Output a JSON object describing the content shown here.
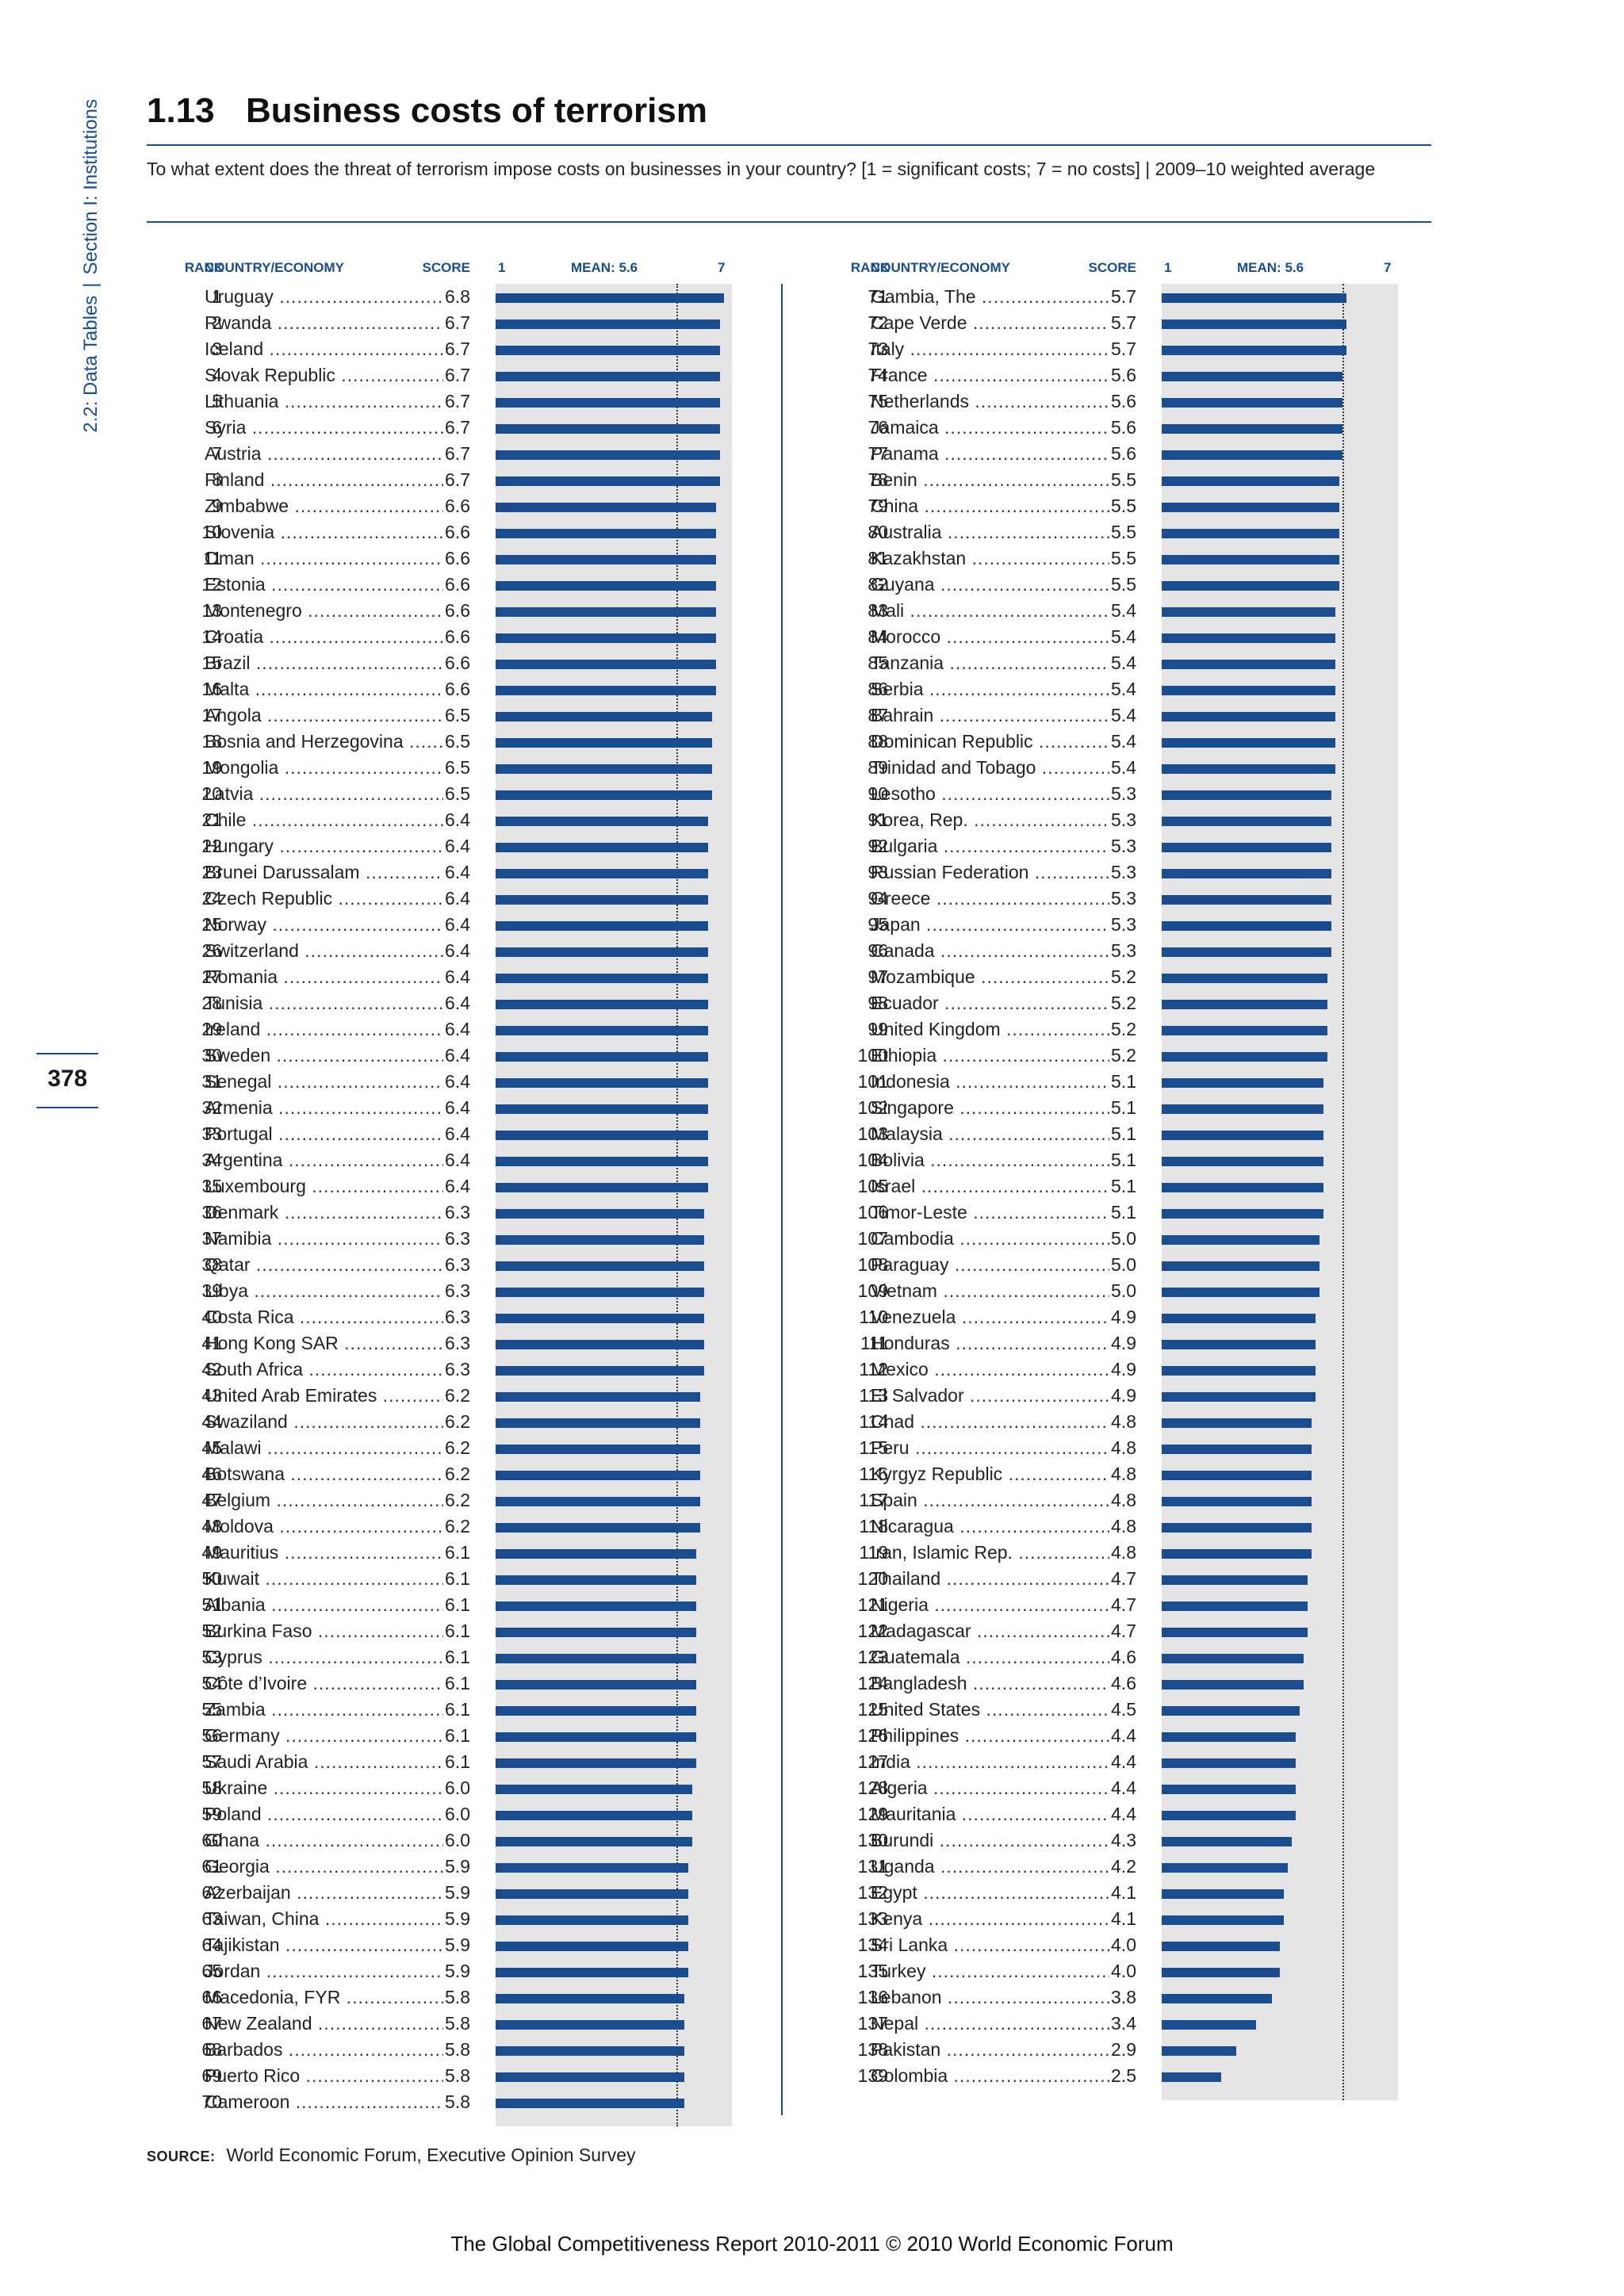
{
  "side": {
    "part1": "2.2: Data Tables",
    "sep": "|",
    "part2": "Section I: Institutions"
  },
  "page_number": "378",
  "title": {
    "number": "1.13",
    "text": "Business costs of terrorism"
  },
  "question": "To what extent does the threat of terrorism impose costs on businesses in your country? [1 = significant costs; 7 = no costs]  |  2009–10 weighted average",
  "headers": {
    "rank": "RANK",
    "country": "COUNTRY/ECONOMY",
    "score": "SCORE",
    "min": "1",
    "mean": "MEAN: 5.6",
    "max": "7"
  },
  "source": {
    "label": "SOURCE:",
    "text": "World Economic Forum, Executive Opinion Survey"
  },
  "footer": "The Global Competitiveness Report 2010-2011 © 2010 World Economic Forum",
  "colors": {
    "accent": "#1a4d8f",
    "bar": "#1a4d8f",
    "track": "#e5e5e5"
  },
  "chart_data": {
    "type": "bar",
    "orientation": "horizontal",
    "title": "Business costs of terrorism",
    "xlim": [
      1,
      7
    ],
    "mean": 5.6,
    "rows": [
      {
        "rank": 1,
        "country": "Uruguay",
        "score": 6.8
      },
      {
        "rank": 2,
        "country": "Rwanda",
        "score": 6.7
      },
      {
        "rank": 3,
        "country": "Iceland",
        "score": 6.7
      },
      {
        "rank": 4,
        "country": "Slovak Republic",
        "score": 6.7
      },
      {
        "rank": 5,
        "country": "Lithuania",
        "score": 6.7
      },
      {
        "rank": 6,
        "country": "Syria",
        "score": 6.7
      },
      {
        "rank": 7,
        "country": "Austria",
        "score": 6.7
      },
      {
        "rank": 8,
        "country": "Finland",
        "score": 6.7
      },
      {
        "rank": 9,
        "country": "Zimbabwe",
        "score": 6.6
      },
      {
        "rank": 10,
        "country": "Slovenia",
        "score": 6.6
      },
      {
        "rank": 11,
        "country": "Oman",
        "score": 6.6
      },
      {
        "rank": 12,
        "country": "Estonia",
        "score": 6.6
      },
      {
        "rank": 13,
        "country": "Montenegro",
        "score": 6.6
      },
      {
        "rank": 14,
        "country": "Croatia",
        "score": 6.6
      },
      {
        "rank": 15,
        "country": "Brazil",
        "score": 6.6
      },
      {
        "rank": 16,
        "country": "Malta",
        "score": 6.6
      },
      {
        "rank": 17,
        "country": "Angola",
        "score": 6.5
      },
      {
        "rank": 18,
        "country": "Bosnia and Herzegovina",
        "score": 6.5
      },
      {
        "rank": 19,
        "country": "Mongolia",
        "score": 6.5
      },
      {
        "rank": 20,
        "country": "Latvia",
        "score": 6.5
      },
      {
        "rank": 21,
        "country": "Chile",
        "score": 6.4
      },
      {
        "rank": 22,
        "country": "Hungary",
        "score": 6.4
      },
      {
        "rank": 23,
        "country": "Brunei Darussalam",
        "score": 6.4
      },
      {
        "rank": 24,
        "country": "Czech Republic",
        "score": 6.4
      },
      {
        "rank": 25,
        "country": "Norway",
        "score": 6.4
      },
      {
        "rank": 26,
        "country": "Switzerland",
        "score": 6.4
      },
      {
        "rank": 27,
        "country": "Romania",
        "score": 6.4
      },
      {
        "rank": 28,
        "country": "Tunisia",
        "score": 6.4
      },
      {
        "rank": 29,
        "country": "Ireland",
        "score": 6.4
      },
      {
        "rank": 30,
        "country": "Sweden",
        "score": 6.4
      },
      {
        "rank": 31,
        "country": "Senegal",
        "score": 6.4
      },
      {
        "rank": 32,
        "country": "Armenia",
        "score": 6.4
      },
      {
        "rank": 33,
        "country": "Portugal",
        "score": 6.4
      },
      {
        "rank": 34,
        "country": "Argentina",
        "score": 6.4
      },
      {
        "rank": 35,
        "country": "Luxembourg",
        "score": 6.4
      },
      {
        "rank": 36,
        "country": "Denmark",
        "score": 6.3
      },
      {
        "rank": 37,
        "country": "Namibia",
        "score": 6.3
      },
      {
        "rank": 38,
        "country": "Qatar",
        "score": 6.3
      },
      {
        "rank": 39,
        "country": "Libya",
        "score": 6.3
      },
      {
        "rank": 40,
        "country": "Costa Rica",
        "score": 6.3
      },
      {
        "rank": 41,
        "country": "Hong Kong SAR",
        "score": 6.3
      },
      {
        "rank": 42,
        "country": "South Africa",
        "score": 6.3
      },
      {
        "rank": 43,
        "country": "United Arab Emirates",
        "score": 6.2
      },
      {
        "rank": 44,
        "country": "Swaziland",
        "score": 6.2
      },
      {
        "rank": 45,
        "country": "Malawi",
        "score": 6.2
      },
      {
        "rank": 46,
        "country": "Botswana",
        "score": 6.2
      },
      {
        "rank": 47,
        "country": "Belgium",
        "score": 6.2
      },
      {
        "rank": 48,
        "country": "Moldova",
        "score": 6.2
      },
      {
        "rank": 49,
        "country": "Mauritius",
        "score": 6.1
      },
      {
        "rank": 50,
        "country": "Kuwait",
        "score": 6.1
      },
      {
        "rank": 51,
        "country": "Albania",
        "score": 6.1
      },
      {
        "rank": 52,
        "country": "Burkina Faso",
        "score": 6.1
      },
      {
        "rank": 53,
        "country": "Cyprus",
        "score": 6.1
      },
      {
        "rank": 54,
        "country": "Côte d’Ivoire",
        "score": 6.1
      },
      {
        "rank": 55,
        "country": "Zambia",
        "score": 6.1
      },
      {
        "rank": 56,
        "country": "Germany",
        "score": 6.1
      },
      {
        "rank": 57,
        "country": "Saudi Arabia",
        "score": 6.1
      },
      {
        "rank": 58,
        "country": "Ukraine",
        "score": 6.0
      },
      {
        "rank": 59,
        "country": "Poland",
        "score": 6.0
      },
      {
        "rank": 60,
        "country": "Ghana",
        "score": 6.0
      },
      {
        "rank": 61,
        "country": "Georgia",
        "score": 5.9
      },
      {
        "rank": 62,
        "country": "Azerbaijan",
        "score": 5.9
      },
      {
        "rank": 63,
        "country": "Taiwan, China",
        "score": 5.9
      },
      {
        "rank": 64,
        "country": "Tajikistan",
        "score": 5.9
      },
      {
        "rank": 65,
        "country": "Jordan",
        "score": 5.9
      },
      {
        "rank": 66,
        "country": "Macedonia, FYR",
        "score": 5.8
      },
      {
        "rank": 67,
        "country": "New Zealand",
        "score": 5.8
      },
      {
        "rank": 68,
        "country": "Barbados",
        "score": 5.8
      },
      {
        "rank": 69,
        "country": "Puerto Rico",
        "score": 5.8
      },
      {
        "rank": 70,
        "country": "Cameroon",
        "score": 5.8
      },
      {
        "rank": 71,
        "country": "Gambia, The",
        "score": 5.7
      },
      {
        "rank": 72,
        "country": "Cape Verde",
        "score": 5.7
      },
      {
        "rank": 73,
        "country": "Italy",
        "score": 5.7
      },
      {
        "rank": 74,
        "country": "France",
        "score": 5.6
      },
      {
        "rank": 75,
        "country": "Netherlands",
        "score": 5.6
      },
      {
        "rank": 76,
        "country": "Jamaica",
        "score": 5.6
      },
      {
        "rank": 77,
        "country": "Panama",
        "score": 5.6
      },
      {
        "rank": 78,
        "country": "Benin",
        "score": 5.5
      },
      {
        "rank": 79,
        "country": "China",
        "score": 5.5
      },
      {
        "rank": 80,
        "country": "Australia",
        "score": 5.5
      },
      {
        "rank": 81,
        "country": "Kazakhstan",
        "score": 5.5
      },
      {
        "rank": 82,
        "country": "Guyana",
        "score": 5.5
      },
      {
        "rank": 83,
        "country": "Mali",
        "score": 5.4
      },
      {
        "rank": 84,
        "country": "Morocco",
        "score": 5.4
      },
      {
        "rank": 85,
        "country": "Tanzania",
        "score": 5.4
      },
      {
        "rank": 86,
        "country": "Serbia",
        "score": 5.4
      },
      {
        "rank": 87,
        "country": "Bahrain",
        "score": 5.4
      },
      {
        "rank": 88,
        "country": "Dominican Republic",
        "score": 5.4
      },
      {
        "rank": 89,
        "country": "Trinidad and Tobago",
        "score": 5.4
      },
      {
        "rank": 90,
        "country": "Lesotho",
        "score": 5.3
      },
      {
        "rank": 91,
        "country": "Korea, Rep.",
        "score": 5.3
      },
      {
        "rank": 92,
        "country": "Bulgaria",
        "score": 5.3
      },
      {
        "rank": 93,
        "country": "Russian Federation",
        "score": 5.3
      },
      {
        "rank": 94,
        "country": "Greece",
        "score": 5.3
      },
      {
        "rank": 95,
        "country": "Japan",
        "score": 5.3
      },
      {
        "rank": 96,
        "country": "Canada",
        "score": 5.3
      },
      {
        "rank": 97,
        "country": "Mozambique",
        "score": 5.2
      },
      {
        "rank": 98,
        "country": "Ecuador",
        "score": 5.2
      },
      {
        "rank": 99,
        "country": "United Kingdom",
        "score": 5.2
      },
      {
        "rank": 100,
        "country": "Ethiopia",
        "score": 5.2
      },
      {
        "rank": 101,
        "country": "Indonesia",
        "score": 5.1
      },
      {
        "rank": 102,
        "country": "Singapore",
        "score": 5.1
      },
      {
        "rank": 103,
        "country": "Malaysia",
        "score": 5.1
      },
      {
        "rank": 104,
        "country": "Bolivia",
        "score": 5.1
      },
      {
        "rank": 105,
        "country": "Israel",
        "score": 5.1
      },
      {
        "rank": 106,
        "country": "Timor-Leste",
        "score": 5.1
      },
      {
        "rank": 107,
        "country": "Cambodia",
        "score": 5.0
      },
      {
        "rank": 108,
        "country": "Paraguay",
        "score": 5.0
      },
      {
        "rank": 109,
        "country": "Vietnam",
        "score": 5.0
      },
      {
        "rank": 110,
        "country": "Venezuela",
        "score": 4.9
      },
      {
        "rank": 111,
        "country": "Honduras",
        "score": 4.9
      },
      {
        "rank": 112,
        "country": "Mexico",
        "score": 4.9
      },
      {
        "rank": 113,
        "country": "El Salvador",
        "score": 4.9
      },
      {
        "rank": 114,
        "country": "Chad",
        "score": 4.8
      },
      {
        "rank": 115,
        "country": "Peru",
        "score": 4.8
      },
      {
        "rank": 116,
        "country": "Kyrgyz Republic",
        "score": 4.8
      },
      {
        "rank": 117,
        "country": "Spain",
        "score": 4.8
      },
      {
        "rank": 118,
        "country": "Nicaragua",
        "score": 4.8
      },
      {
        "rank": 119,
        "country": "Iran, Islamic Rep.",
        "score": 4.8
      },
      {
        "rank": 120,
        "country": "Thailand",
        "score": 4.7
      },
      {
        "rank": 121,
        "country": "Nigeria",
        "score": 4.7
      },
      {
        "rank": 122,
        "country": "Madagascar",
        "score": 4.7
      },
      {
        "rank": 123,
        "country": "Guatemala",
        "score": 4.6
      },
      {
        "rank": 124,
        "country": "Bangladesh",
        "score": 4.6
      },
      {
        "rank": 125,
        "country": "United States",
        "score": 4.5
      },
      {
        "rank": 126,
        "country": "Philippines",
        "score": 4.4
      },
      {
        "rank": 127,
        "country": "India",
        "score": 4.4
      },
      {
        "rank": 128,
        "country": "Algeria",
        "score": 4.4
      },
      {
        "rank": 129,
        "country": "Mauritania",
        "score": 4.4
      },
      {
        "rank": 130,
        "country": "Burundi",
        "score": 4.3
      },
      {
        "rank": 131,
        "country": "Uganda",
        "score": 4.2
      },
      {
        "rank": 132,
        "country": "Egypt",
        "score": 4.1
      },
      {
        "rank": 133,
        "country": "Kenya",
        "score": 4.1
      },
      {
        "rank": 134,
        "country": "Sri Lanka",
        "score": 4.0
      },
      {
        "rank": 135,
        "country": "Turkey",
        "score": 4.0
      },
      {
        "rank": 136,
        "country": "Lebanon",
        "score": 3.8
      },
      {
        "rank": 137,
        "country": "Nepal",
        "score": 3.4
      },
      {
        "rank": 138,
        "country": "Pakistan",
        "score": 2.9
      },
      {
        "rank": 139,
        "country": "Colombia",
        "score": 2.5
      }
    ]
  }
}
